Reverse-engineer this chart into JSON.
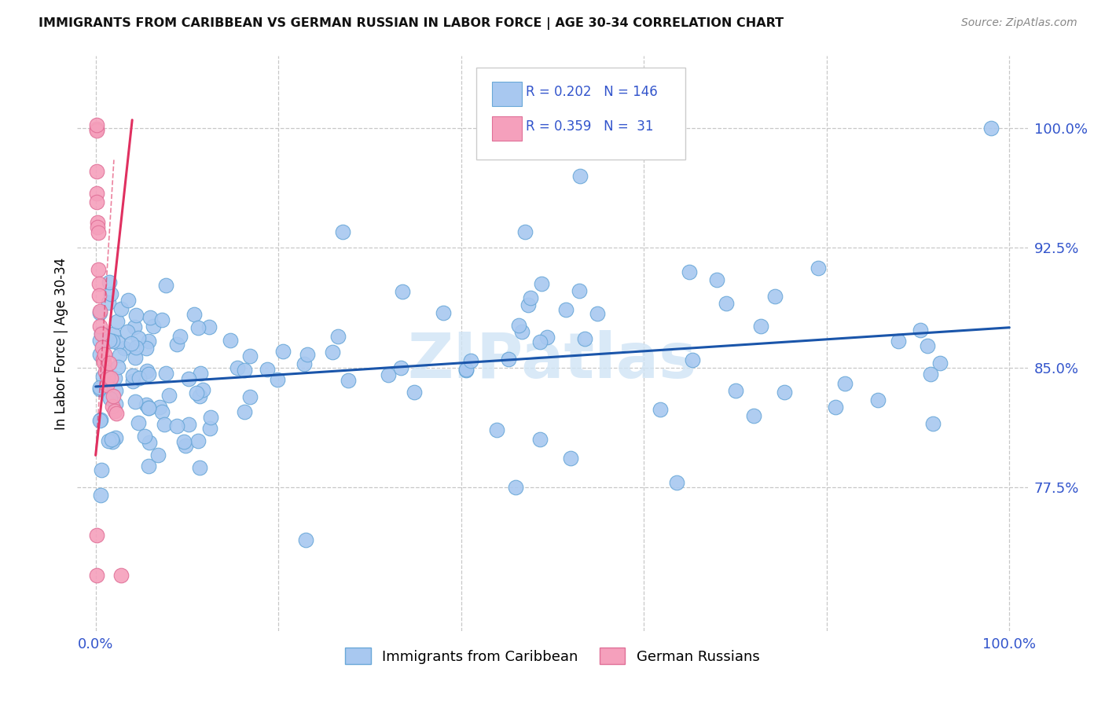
{
  "title": "IMMIGRANTS FROM CARIBBEAN VS GERMAN RUSSIAN IN LABOR FORCE | AGE 30-34 CORRELATION CHART",
  "source": "Source: ZipAtlas.com",
  "ylabel": "In Labor Force | Age 30-34",
  "xlim": [
    -0.02,
    1.02
  ],
  "ylim": [
    0.685,
    1.045
  ],
  "xticks": [
    0.0,
    0.2,
    0.4,
    0.6,
    0.8,
    1.0
  ],
  "xticklabels": [
    "0.0%",
    "",
    "",
    "",
    "",
    "100.0%"
  ],
  "ytick_positions": [
    0.775,
    0.85,
    0.925,
    1.0
  ],
  "right_ytick_labels": [
    "77.5%",
    "85.0%",
    "92.5%",
    "100.0%"
  ],
  "legend_R_blue": "0.202",
  "legend_N_blue": "146",
  "legend_R_pink": "0.359",
  "legend_N_pink": " 31",
  "blue_color": "#a8c8f0",
  "blue_edge_color": "#6aa8d8",
  "pink_color": "#f5a0bc",
  "pink_edge_color": "#e07098",
  "blue_line_color": "#1a55aa",
  "pink_line_color": "#e03060",
  "grid_color": "#c8c8c8",
  "watermark_color": "#d0e4f5",
  "title_color": "#111111",
  "source_color": "#888888",
  "tick_color": "#3355cc",
  "blue_line_x0": 0.0,
  "blue_line_y0": 0.838,
  "blue_line_x1": 1.0,
  "blue_line_y1": 0.875,
  "pink_line_x0": 0.0,
  "pink_line_y0": 0.795,
  "pink_line_x1": 0.04,
  "pink_line_y1": 1.005
}
